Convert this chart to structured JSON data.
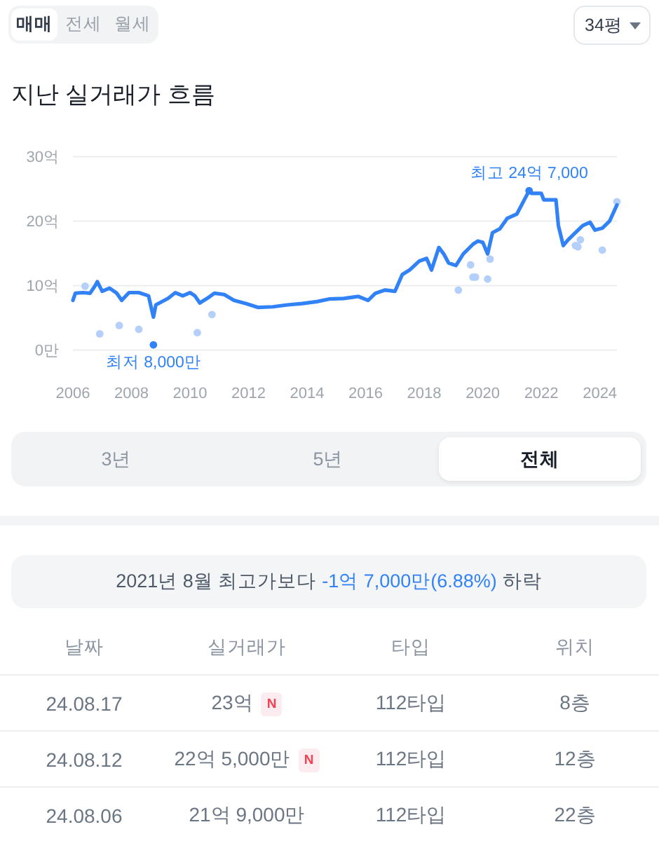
{
  "chart_data": [
    {
      "type": "other",
      "annotations": [
        "매매",
        "전세",
        "월세",
        "34평"
      ]
    },
    {
      "type": "line",
      "title": "지난 실거래가 흐름",
      "series": [
        {
          "type": "scatter",
          "marker": "circle",
          "color": "#b3cffa",
          "x": [
            "2006-06",
            "2006-12",
            "2007-08",
            "2008-04",
            "2010-04",
            "2010-10",
            "2019-03",
            "2019-08",
            "2019-09",
            "2019-10",
            "2020-03",
            "2020-04",
            "2023-03",
            "2023-04",
            "2023-05",
            "2024-02",
            "2024-08"
          ],
          "values": [
            9.9,
            2.5,
            3.8,
            3.2,
            2.7,
            5.5,
            9.3,
            13.2,
            11.3,
            11.3,
            11.0,
            14.1,
            16.2,
            16.0,
            17.1,
            15.5,
            23.0
          ]
        },
        {
          "type": "line",
          "color": "#3182f6",
          "x": [
            "2006-01",
            "2006-02",
            "2006-05",
            "2006-08",
            "2006-10",
            "2006-11",
            "2007-01",
            "2007-04",
            "2007-07",
            "2007-09",
            "2007-12",
            "2008-04",
            "2008-08",
            "2008-10",
            "2008-11",
            "2009-04",
            "2009-07",
            "2009-10",
            "2010-01",
            "2010-03",
            "2010-05",
            "2010-08",
            "2010-11",
            "2011-03",
            "2011-07",
            "2011-12",
            "2012-05",
            "2012-11",
            "2013-05",
            "2013-11",
            "2014-05",
            "2014-10",
            "2015-04",
            "2015-10",
            "2016-02",
            "2016-05",
            "2016-09",
            "2017-01",
            "2017-04",
            "2017-07",
            "2017-11",
            "2018-02",
            "2018-04",
            "2018-07",
            "2018-09",
            "2018-11",
            "2019-02",
            "2019-05",
            "2019-09",
            "2019-11",
            "2020-01",
            "2020-03",
            "2020-05",
            "2020-08",
            "2020-11",
            "2021-03",
            "2021-08",
            "2021-09",
            "2022-01",
            "2022-02",
            "2022-07",
            "2022-08",
            "2022-10",
            "2022-12",
            "2023-03",
            "2023-06",
            "2023-09",
            "2023-11",
            "2024-02",
            "2024-05",
            "2024-08"
          ],
          "values": [
            7.7,
            8.8,
            8.9,
            8.8,
            9.9,
            10.6,
            9.1,
            9.6,
            8.8,
            7.7,
            8.9,
            8.9,
            8.4,
            5.1,
            7.0,
            8.0,
            8.9,
            8.4,
            8.9,
            8.4,
            7.3,
            8.0,
            8.8,
            8.6,
            7.7,
            7.2,
            6.6,
            6.7,
            7.0,
            7.2,
            7.5,
            7.9,
            8.0,
            8.3,
            7.7,
            8.8,
            9.3,
            9.1,
            11.7,
            12.4,
            13.8,
            14.2,
            12.4,
            15.9,
            14.9,
            13.5,
            13.1,
            14.9,
            16.4,
            16.9,
            16.7,
            14.9,
            18.2,
            18.8,
            20.4,
            21.1,
            24.7,
            24.3,
            24.3,
            23.3,
            23.3,
            19.3,
            16.2,
            17.1,
            18.2,
            19.3,
            19.8,
            18.6,
            18.9,
            20.0,
            22.5
          ]
        },
        {
          "type": "scatter",
          "marker": "circle",
          "color": "#3182f6",
          "x": [
            "2008-10",
            "2021-08"
          ],
          "values": [
            0.8,
            24.7
          ]
        }
      ],
      "xlim": [
        "2006-01",
        "2024-08"
      ],
      "xticks": [
        "2006",
        "2008",
        "2010",
        "2012",
        "2014",
        "2016",
        "2018",
        "2020",
        "2022",
        "2024"
      ],
      "ylim": [
        0,
        30
      ],
      "yticks": [
        {
          "value": 0,
          "label": "0만"
        },
        {
          "value": 10,
          "label": "10억"
        },
        {
          "value": 20,
          "label": "20억"
        },
        {
          "value": 30,
          "label": "30억"
        }
      ],
      "grid": "y",
      "annotations": [
        {
          "text": "최고 24억 7,000",
          "x": "2021-08",
          "y": 24.7
        },
        {
          "text": "최저 8,000만",
          "x": "2008-10",
          "y": 0.8
        }
      ]
    },
    {
      "type": "other",
      "annotations": [
        "3년",
        "5년",
        "전체"
      ]
    },
    {
      "type": "other",
      "annotations": [
        "2021년 8월 최고가보다",
        "-1억 7,000만(6.88%)",
        "하락",
        "날짜",
        "실거래가",
        "타입",
        "위치",
        "24.08.17",
        "23억",
        "N",
        "112타입",
        "8층",
        "24.08.12",
        "22억 5,000만",
        "N",
        "112타입",
        "12층",
        "24.08.06",
        "21억 9,000만",
        "112타입",
        "22층"
      ]
    }
  ]
}
